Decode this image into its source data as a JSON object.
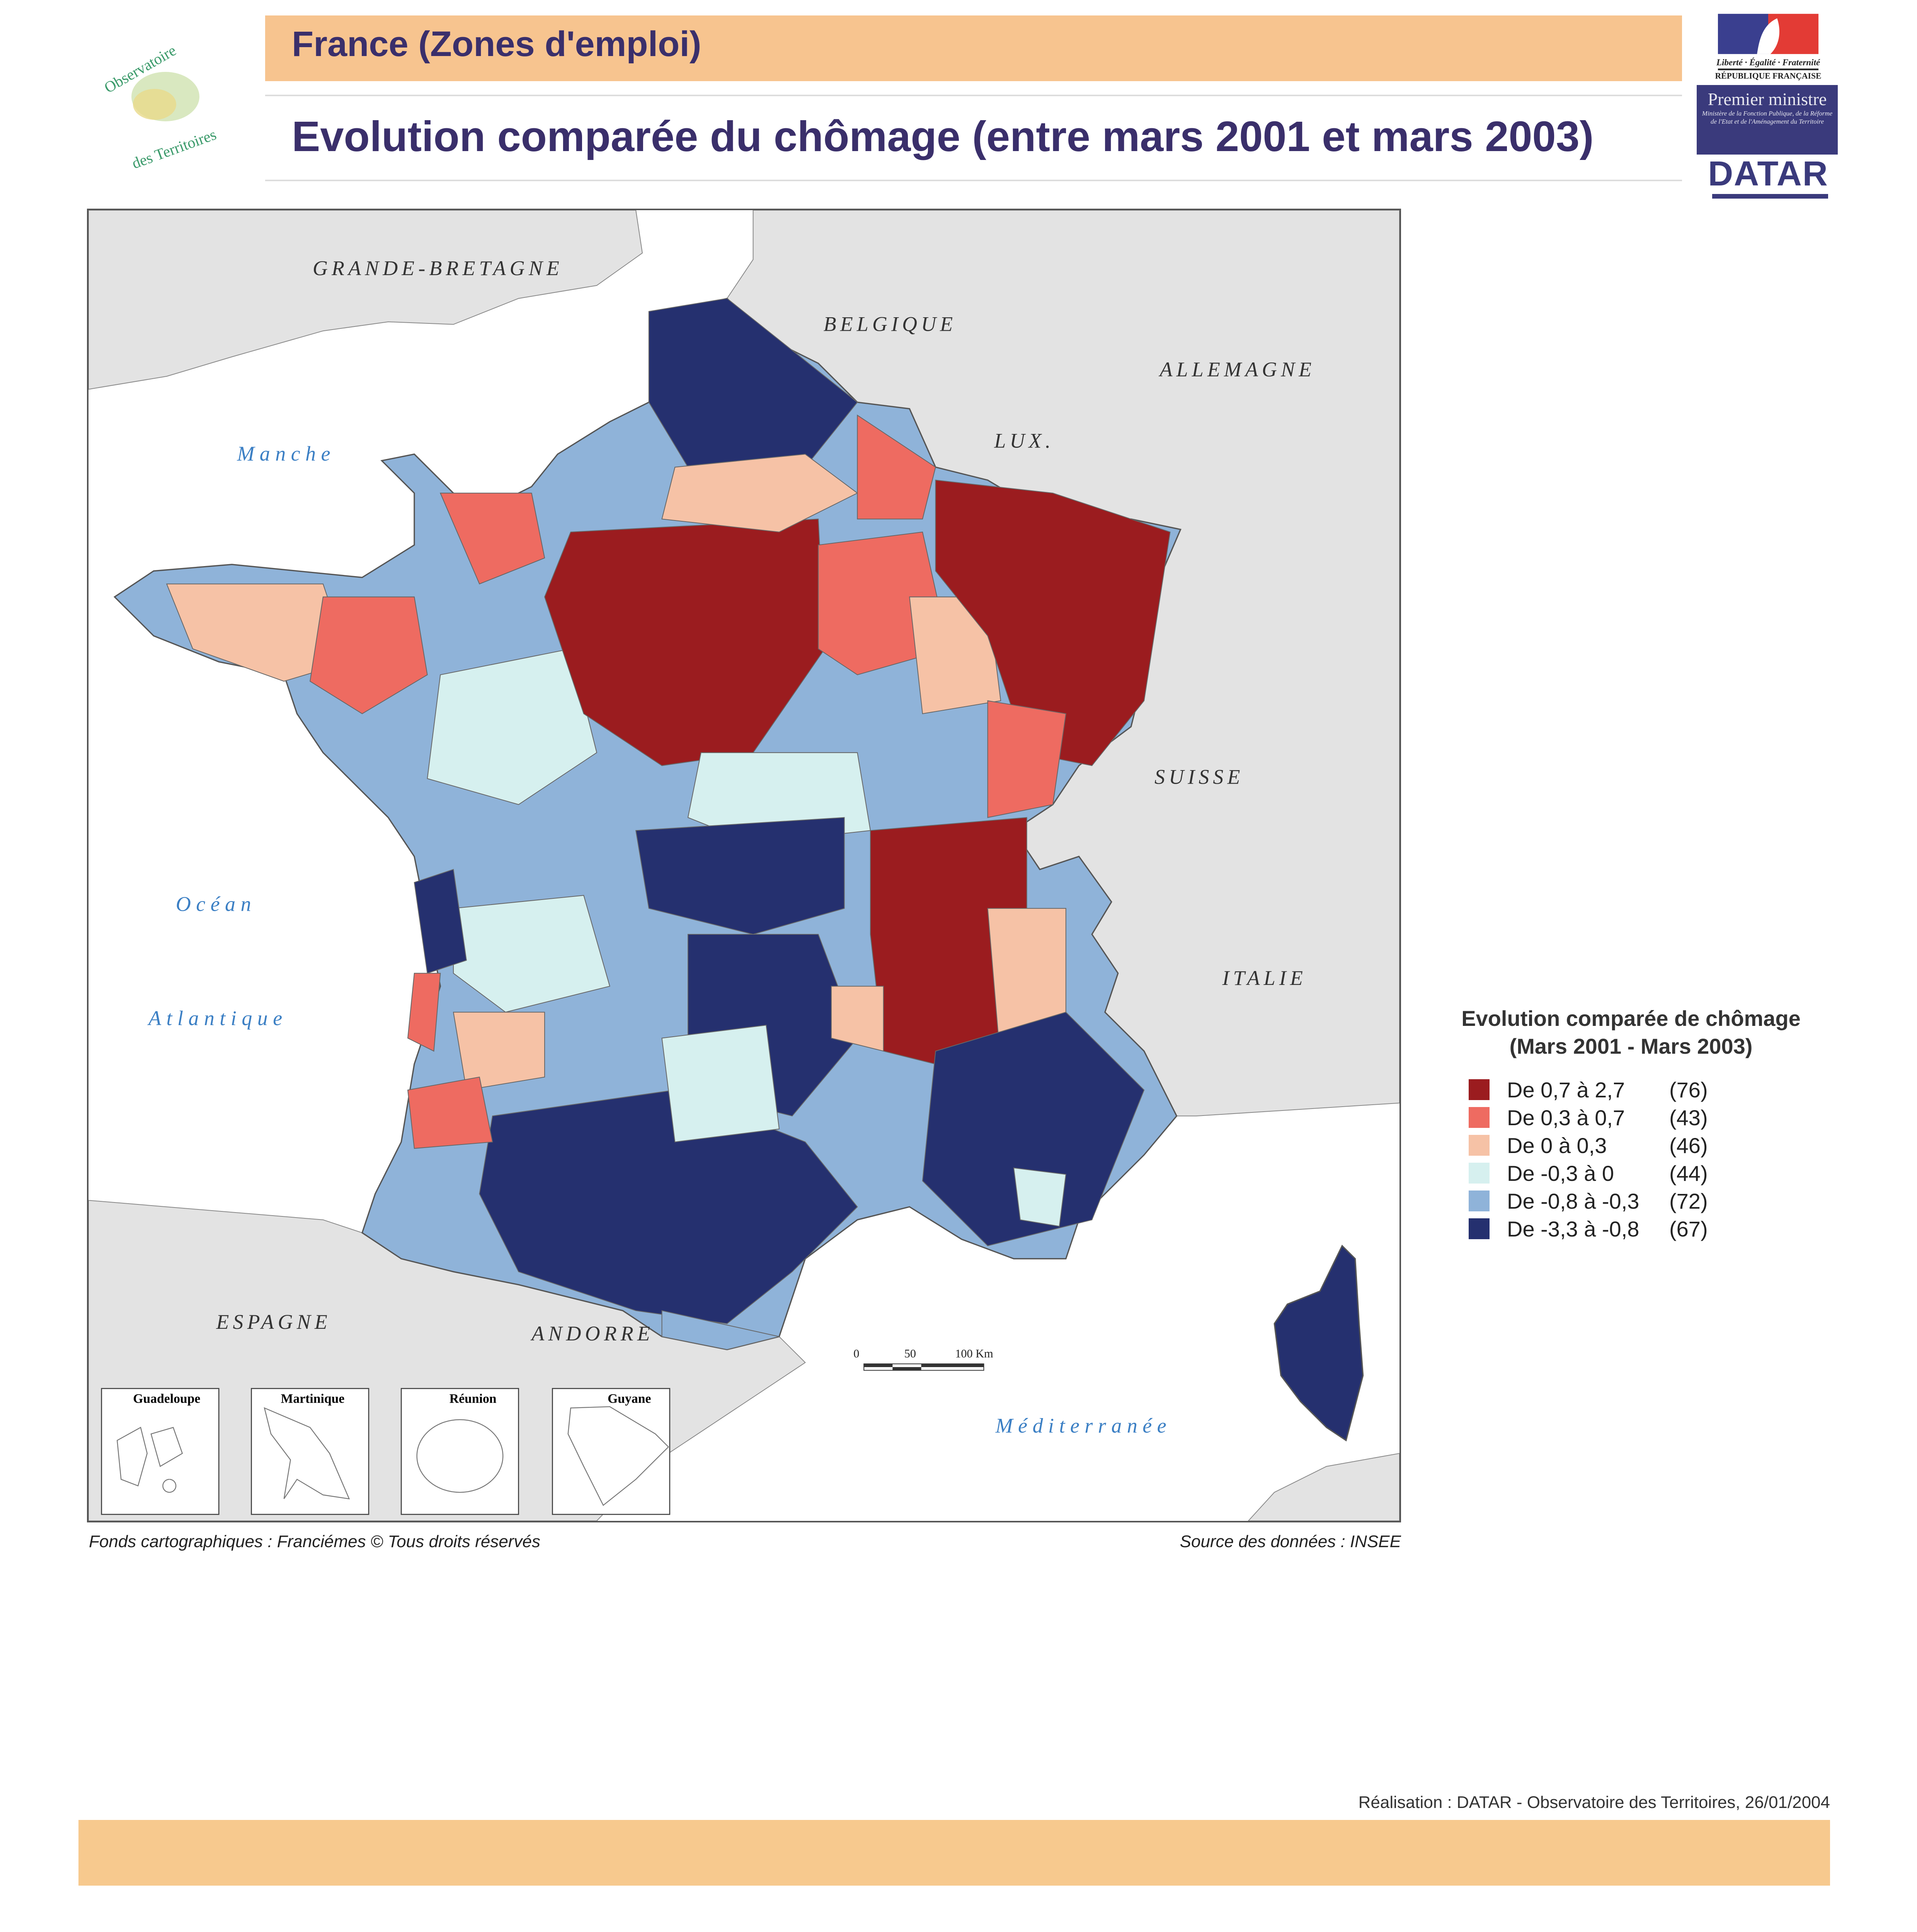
{
  "header": {
    "title": "France (Zones d'emploi)",
    "subtitle": "Evolution comparée du chômage (entre mars 2001 et mars 2003)"
  },
  "logos": {
    "observatoire": "Observatoire des Territoires",
    "republique": "Liberté · Égalité · Fraternité — République Française",
    "premier_ministre": "Premier ministre",
    "ministere": "Ministère de la Fonction Publique, de la Réforme de l'Etat et de l'Aménagement du Territoire",
    "datar": "DATAR"
  },
  "map": {
    "labels": {
      "gb": "GRANDE-BRETAGNE",
      "be": "BELGIQUE",
      "de": "ALLEMAGNE",
      "lu": "LUX.",
      "ch": "SUISSE",
      "it": "ITALIE",
      "es": "ESPAGNE",
      "ad": "ANDORRE",
      "manche": "Manche",
      "ocean": "Océan",
      "atlantique": "Atlantique",
      "med": "Méditerranée"
    },
    "insets": [
      "Guadeloupe",
      "Martinique",
      "Réunion",
      "Guyane"
    ],
    "scale": {
      "zero": "0",
      "mid": "50",
      "end": "100 Km"
    },
    "fonds": "Fonds cartographiques : Franciémes © Tous droits réservés",
    "source": "Source des données : INSEE"
  },
  "legend": {
    "title1": "Evolution comparée de chômage",
    "title2": "(Mars 2001 - Mars 2003)",
    "classes": [
      {
        "label": "De 0,7 à 2,7",
        "count": "(76)",
        "color": "#9b1c1f"
      },
      {
        "label": "De 0,3 à 0,7",
        "count": "(43)",
        "color": "#ee6b61"
      },
      {
        "label": "De 0 à 0,3",
        "count": "(46)",
        "color": "#f6c2a6"
      },
      {
        "label": "De -0,3 à 0",
        "count": "(44)",
        "color": "#d6f0ef"
      },
      {
        "label": "De -0,8 à -0,3",
        "count": "(72)",
        "color": "#8fb3d9"
      },
      {
        "label": "De -3,3 à -0,8",
        "count": "(67)",
        "color": "#25306f"
      }
    ]
  },
  "footer": {
    "realisation": "Réalisation : DATAR - Observatoire des Territoires, 26/01/2004"
  }
}
